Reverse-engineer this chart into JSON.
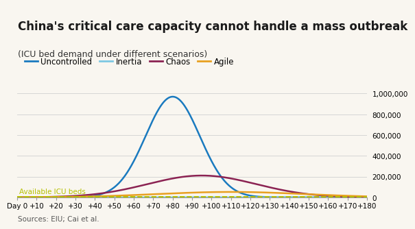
{
  "title": "China's critical care capacity cannot handle a mass outbreak",
  "subtitle": "(ICU bed demand under different scenarios)",
  "source": "Sources: EIU; Cai et al.",
  "x_ticks": [
    0,
    10,
    20,
    30,
    40,
    50,
    60,
    70,
    80,
    90,
    100,
    110,
    120,
    130,
    140,
    150,
    160,
    170,
    180
  ],
  "x_tick_labels": [
    "Day 0",
    "+10",
    "+20",
    "+30",
    "+40",
    "+50",
    "+60",
    "+70",
    "+80",
    "+90",
    "+100",
    "+110",
    "+120",
    "+130",
    "+140",
    "+150",
    "+160",
    "+170",
    "+180"
  ],
  "ylim": [
    0,
    1000000
  ],
  "y_ticks": [
    0,
    200000,
    400000,
    600000,
    800000,
    1000000
  ],
  "y_tick_labels": [
    "0",
    "200,000",
    "400,000",
    "600,000",
    "800,000",
    "1,000,000"
  ],
  "icu_beds_value": 6000,
  "icu_beds_label": "Available ICU beds",
  "colors": {
    "uncontrolled": "#1a7abf",
    "inertia": "#7ec8e3",
    "chaos": "#8b2252",
    "agile": "#e8a020",
    "icu_beds": "#b5c000",
    "background": "#f9f6f0",
    "grid": "#d0d0d0"
  },
  "red_bar_color": "#e03030",
  "title_fontsize": 12,
  "subtitle_fontsize": 9,
  "legend_fontsize": 8.5,
  "axis_fontsize": 7.5,
  "source_fontsize": 7.5,
  "uncontrolled_mu": 80,
  "uncontrolled_sigma": 14,
  "uncontrolled_amp": 970000,
  "inertia_mu": 80,
  "inertia_sigma": 20,
  "inertia_amp": 2500,
  "chaos_mu": 95,
  "chaos_sigma": 28,
  "chaos_amp": 210000,
  "agile_mu": 110,
  "agile_sigma": 38,
  "agile_amp": 52000
}
